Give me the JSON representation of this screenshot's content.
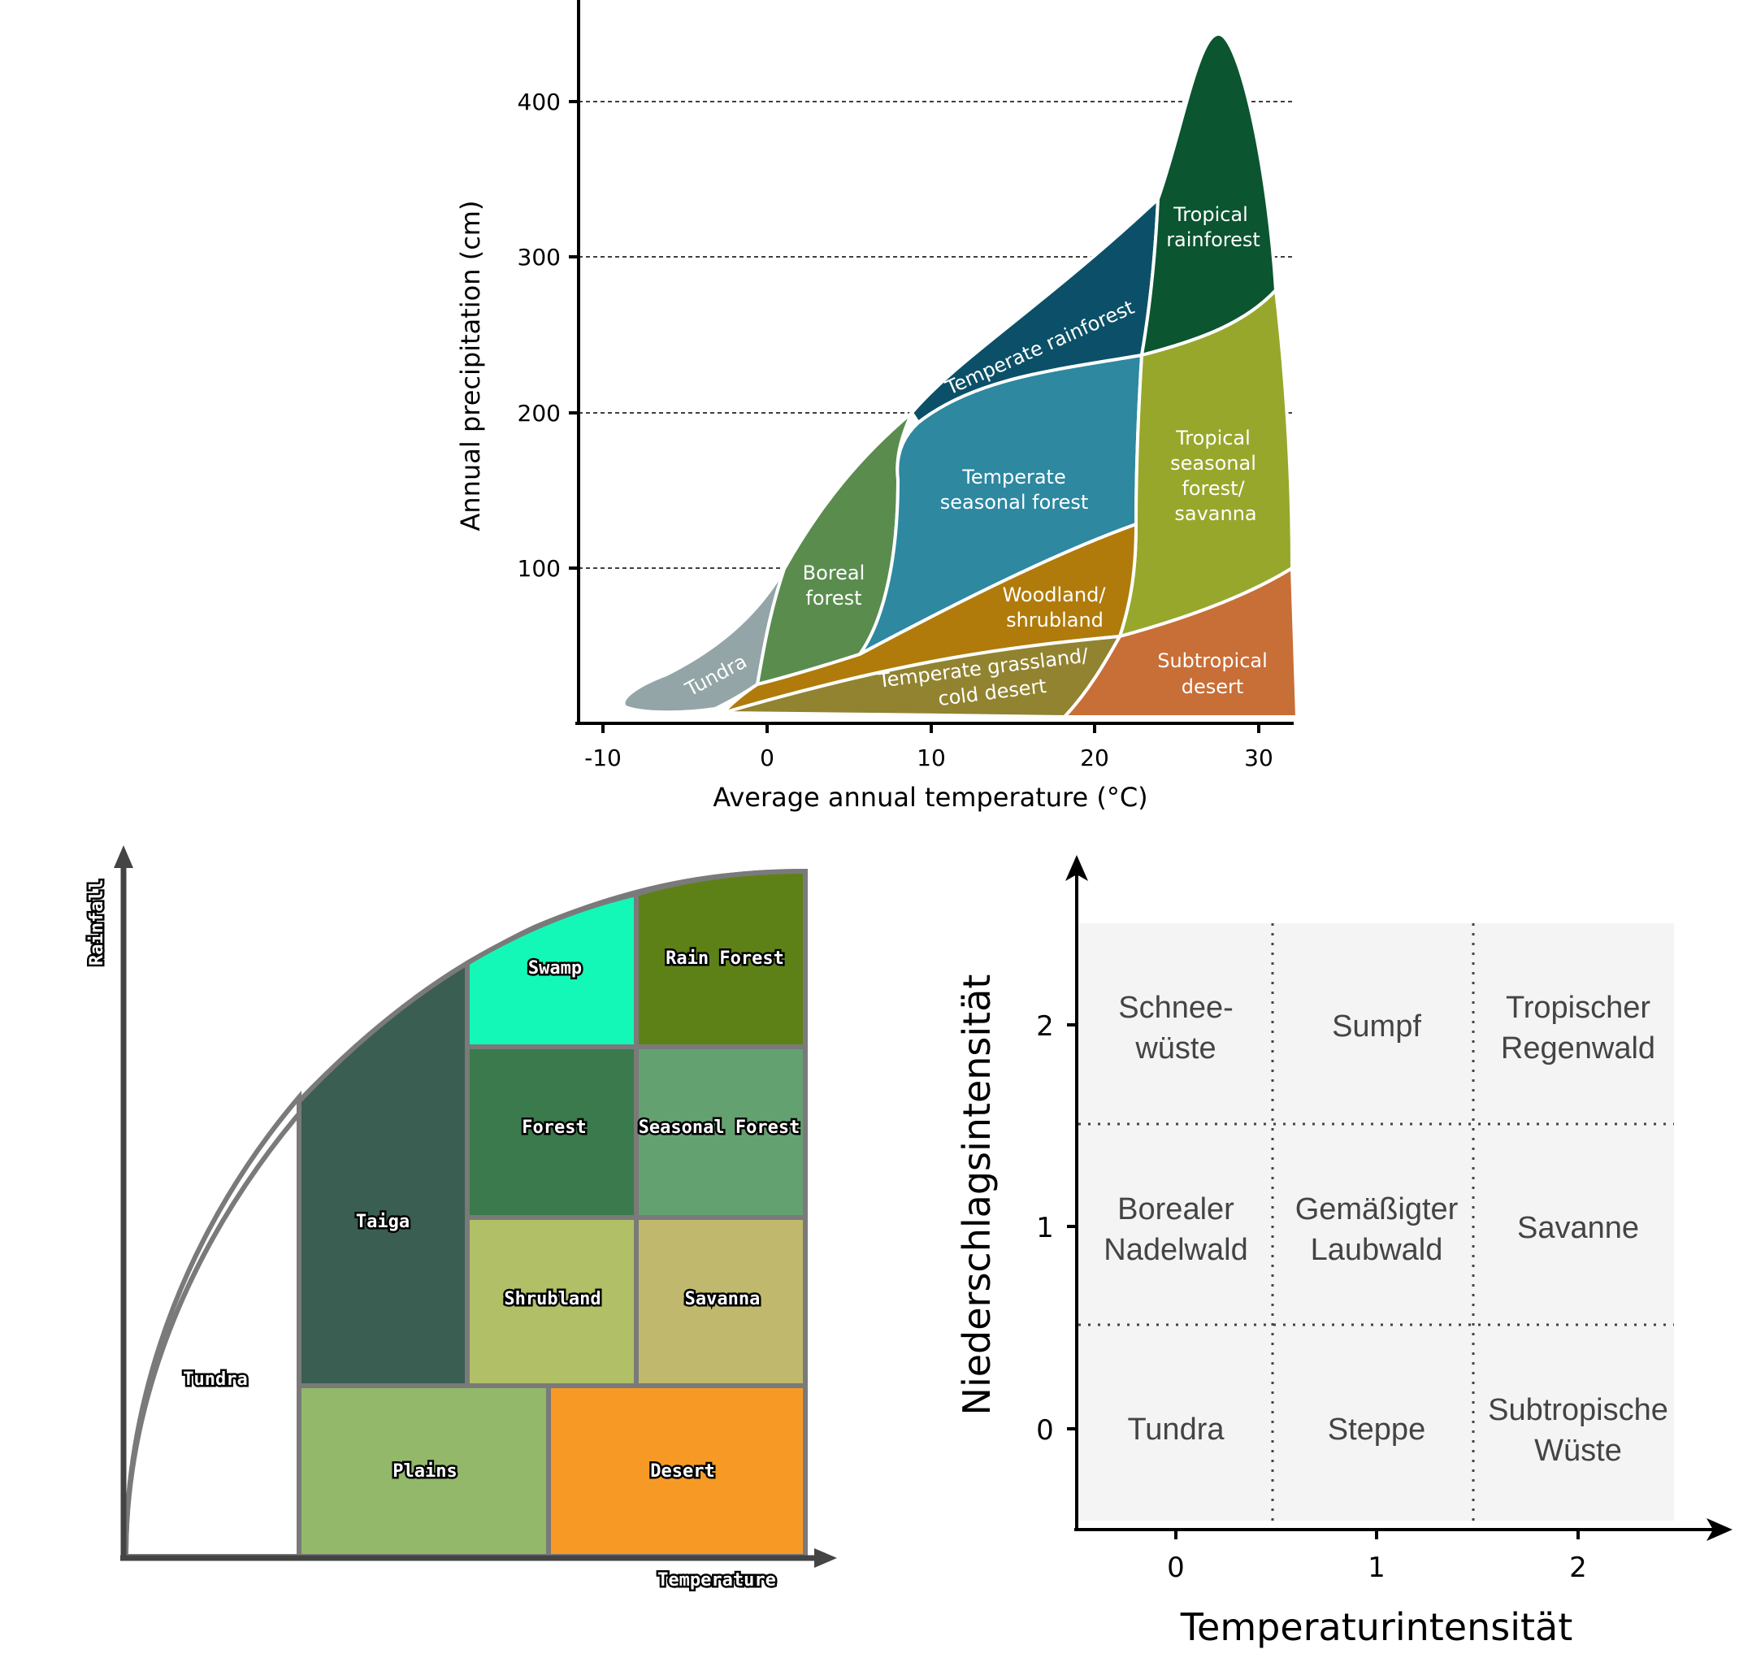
{
  "whittaker": {
    "ylabel": "Annual precipitation (cm)",
    "xlabel": "Average annual temperature (°C)",
    "yticks": [
      "100",
      "200",
      "300",
      "400"
    ],
    "xticks": [
      "-10",
      "0",
      "10",
      "20",
      "30"
    ],
    "colors": {
      "tundra": "#93a5a6",
      "boreal": "#5a8c4e",
      "temperate_seasonal": "#2d88a0",
      "temperate_rainforest": "#0b5068",
      "tropical_rainforest": "#0b5530",
      "tropical_seasonal": "#97a72b",
      "woodland": "#b07b0b",
      "temperate_grassland": "#928330",
      "subtropical_desert": "#c86e37"
    },
    "biomes": {
      "tundra": "Tundra",
      "boreal_1": "Boreal",
      "boreal_2": "forest",
      "temperate_seasonal_1": "Temperate",
      "temperate_seasonal_2": "seasonal forest",
      "temperate_rainforest": "Temperate rainforest",
      "tropical_rainforest_1": "Tropical",
      "tropical_rainforest_2": "rainforest",
      "tropical_seasonal_1": "Tropical",
      "tropical_seasonal_2": "seasonal",
      "tropical_seasonal_3": "forest/",
      "tropical_seasonal_4": "savanna",
      "woodland_1": "Woodland/",
      "woodland_2": "shrubland",
      "temperate_grassland_1": "Temperate grassland/",
      "temperate_grassland_2": "cold desert",
      "subtropical_desert_1": "Subtropical",
      "subtropical_desert_2": "desert"
    }
  },
  "pixel_chart": {
    "ylabel": "Rainfall",
    "xlabel": "Temperature",
    "cells": {
      "tundra": {
        "label": "Tundra",
        "color": "#ffffff"
      },
      "taiga": {
        "label": "Taiga",
        "color": "#3a5e51"
      },
      "swamp": {
        "label": "Swamp",
        "color": "#14f8b7"
      },
      "rain_forest": {
        "label": "Rain Forest",
        "color": "#5e8117"
      },
      "forest": {
        "label": "Forest",
        "color": "#3a7a4c"
      },
      "seasonal_forest": {
        "label": "Seasonal Forest",
        "color": "#64a171"
      },
      "shrubland": {
        "label": "Shrubland",
        "color": "#b1bf66"
      },
      "savanna": {
        "label": "Savanna",
        "color": "#c0b86c"
      },
      "plains": {
        "label": "Plains",
        "color": "#93b86a"
      },
      "desert": {
        "label": "Desert",
        "color": "#f79a25"
      }
    }
  },
  "german_grid": {
    "ylabel": "Niederschlagsintensität",
    "xlabel": "Temperaturintensität",
    "xticks": [
      "0",
      "1",
      "2"
    ],
    "yticks": [
      "0",
      "1",
      "2"
    ],
    "row2": {
      "c0_1": "Schnee-",
      "c0_2": "wüste",
      "c1": "Sumpf",
      "c2_1": "Tropischer",
      "c2_2": "Regenwald"
    },
    "row1": {
      "c0_1": "Borealer",
      "c0_2": "Nadelwald",
      "c1_1": "Gemäßigter",
      "c1_2": "Laubwald",
      "c2": "Savanne"
    },
    "row0": {
      "c0": "Tundra",
      "c1": "Steppe",
      "c2_1": "Subtropische",
      "c2_2": "Wüste"
    }
  }
}
